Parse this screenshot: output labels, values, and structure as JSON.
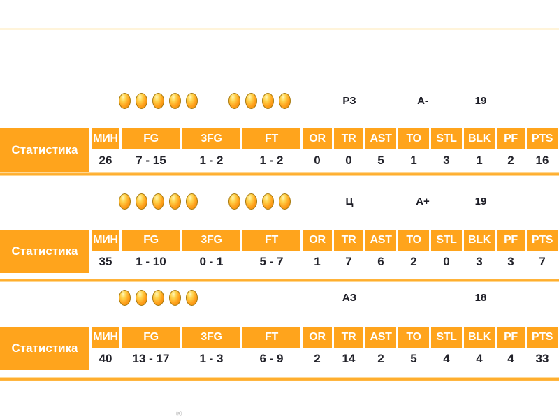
{
  "page": {
    "background": "#ffffff",
    "accent_orange": "#FFA41C",
    "separator_orange": "#FFAE2E",
    "value_text_color": "#23232b",
    "registered_mark": "®"
  },
  "stat_table": {
    "row_label": "Статистика",
    "columns": [
      "МИН",
      "FG",
      "3FG",
      "FT",
      "OR",
      "TR",
      "AST",
      "TO",
      "STL",
      "BLK",
      "PF",
      "PTS"
    ]
  },
  "players": [
    {
      "balls": [
        5,
        4
      ],
      "position": "РЗ",
      "grade": "А-",
      "number": "19",
      "stats": [
        "26",
        "7 - 15",
        "1 - 2",
        "1 - 2",
        "0",
        "0",
        "5",
        "1",
        "3",
        "1",
        "2",
        "16"
      ]
    },
    {
      "balls": [
        5,
        4
      ],
      "position": "Ц",
      "grade": "А+",
      "number": "19",
      "stats": [
        "35",
        "1 - 10",
        "0 - 1",
        "5 - 7",
        "1",
        "7",
        "6",
        "2",
        "0",
        "3",
        "3",
        "7"
      ]
    },
    {
      "balls": [
        5
      ],
      "position": "АЗ",
      "grade": "",
      "number": "18",
      "stats": [
        "40",
        "13 - 17",
        "1 - 3",
        "6 - 9",
        "2",
        "14",
        "2",
        "5",
        "4",
        "4",
        "4",
        "33"
      ]
    }
  ]
}
